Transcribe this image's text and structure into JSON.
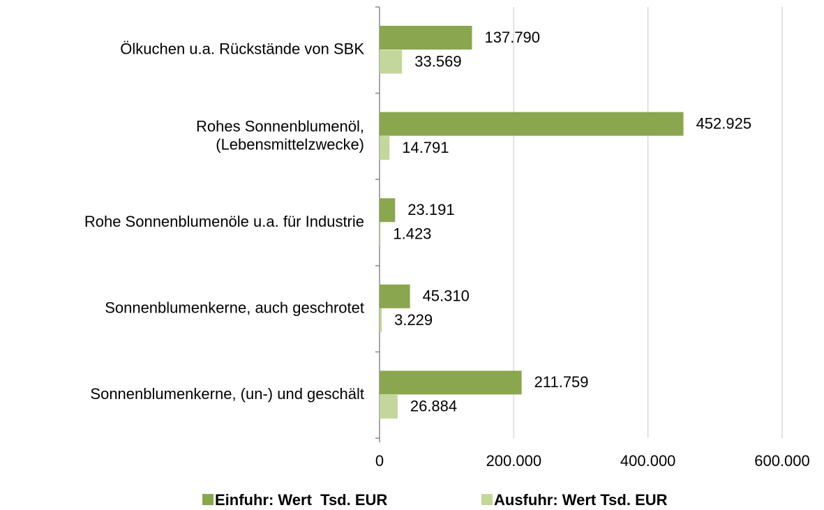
{
  "chart_data": {
    "type": "bar",
    "orientation": "horizontal",
    "categories": [
      "Ölkuchen u.a. Rückstände von SBK",
      "Rohes Sonnenblumenöl,\n(Lebensmittelzwecke)",
      "Rohe Sonnenblumenöle u.a. für Industrie",
      "Sonnenblumenkerne, auch geschrotet",
      "Sonnenblumenkerne, (un-) und geschält"
    ],
    "series": [
      {
        "name": "Einfuhr: Wert  Tsd. EUR",
        "color": "#8aa64f",
        "values": [
          137790,
          452925,
          23191,
          45310,
          211759
        ],
        "value_labels": [
          "137.790",
          "452.925",
          "23.191",
          "45.310",
          "211.759"
        ]
      },
      {
        "name": "Ausfuhr: Wert Tsd. EUR",
        "color": "#c3d69b",
        "values": [
          33569,
          14791,
          1423,
          3229,
          26884
        ],
        "value_labels": [
          "33.569",
          "14.791",
          "1.423",
          "3.229",
          "26.884"
        ]
      }
    ],
    "xlim": [
      0,
      600000
    ],
    "xticks": [
      0,
      {
        "value": 200000,
        "label": "200.000"
      },
      {
        "value": 400000,
        "label": "400.000"
      },
      {
        "value": 600000,
        "label": "600.000"
      }
    ],
    "grid": true,
    "legend": "bottom"
  }
}
